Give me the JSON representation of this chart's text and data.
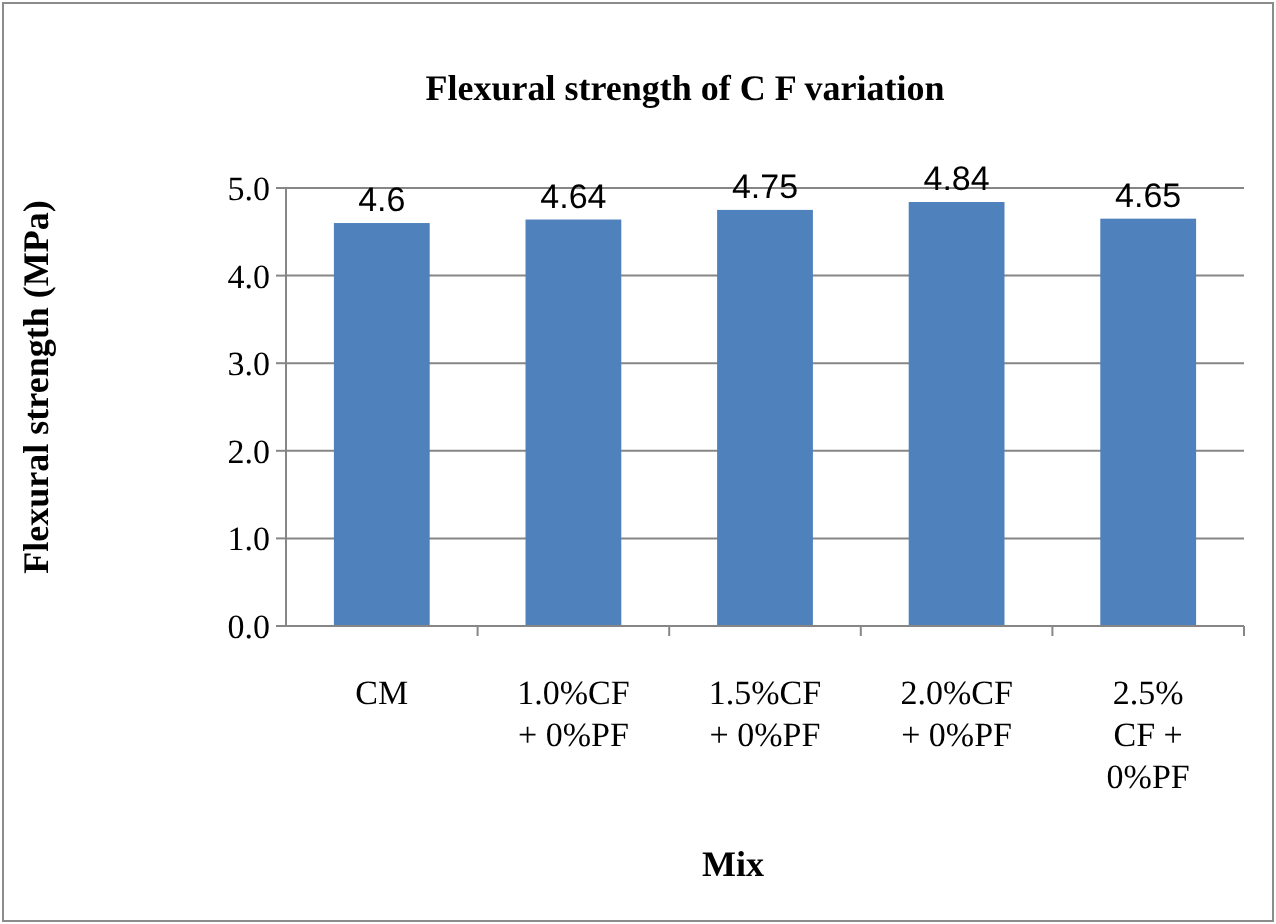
{
  "chart_data": {
    "type": "bar",
    "title": "Flexural strength of  C F variation",
    "xlabel": "Mix",
    "ylabel": "Flexural strength (MPa)",
    "categories": [
      "CM",
      "1.0%CF + 0%PF",
      "1.5%CF + 0%PF",
      "2.0%CF + 0%PF",
      "2.5% CF + 0%PF"
    ],
    "values": [
      4.6,
      4.64,
      4.75,
      4.84,
      4.65
    ],
    "color": "#4f81bd",
    "ylim": [
      0,
      5
    ],
    "yticks": [
      {
        "value": 0,
        "label": "0.0"
      },
      {
        "value": 1,
        "label": "1.0"
      },
      {
        "value": 2,
        "label": "2.0"
      },
      {
        "value": 3,
        "label": "3.0"
      },
      {
        "value": 4,
        "label": "4.0"
      },
      {
        "value": 5,
        "label": "5.0"
      }
    ],
    "grid": "y",
    "data_labels": true
  }
}
